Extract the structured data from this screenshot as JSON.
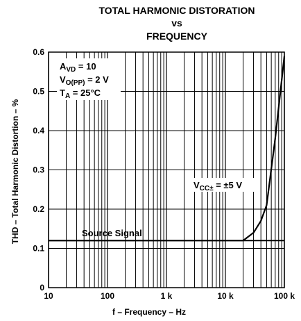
{
  "chart_data": {
    "type": "line",
    "title": [
      "TOTAL HARMONIC DISTORATION",
      "vs",
      "FREQUENCY"
    ],
    "xlabel": "f – Frequency – Hz",
    "ylabel": "THD – Total Harmonic Distortion – %",
    "xscale": "log",
    "xlim": [
      10,
      100000
    ],
    "ylim": [
      0,
      0.6
    ],
    "grid": true,
    "x_ticks": [
      {
        "value": 10,
        "label": "10"
      },
      {
        "value": 100,
        "label": "100"
      },
      {
        "value": 1000,
        "label": "1 k"
      },
      {
        "value": 10000,
        "label": "10 k"
      },
      {
        "value": 100000,
        "label": "100 k"
      }
    ],
    "y_ticks": [
      {
        "value": 0,
        "label": "0"
      },
      {
        "value": 0.1,
        "label": "0.1"
      },
      {
        "value": 0.2,
        "label": "0.2"
      },
      {
        "value": 0.3,
        "label": "0.3"
      },
      {
        "value": 0.4,
        "label": "0.4"
      },
      {
        "value": 0.5,
        "label": "0.5"
      },
      {
        "value": 0.6,
        "label": "0.6"
      }
    ],
    "conditions": [
      {
        "main": "A",
        "sub": "VD",
        "rest": " = 10"
      },
      {
        "main": "V",
        "sub": "O(PP)",
        "rest": " = 2 V"
      },
      {
        "main": "T",
        "sub": "A",
        "rest": " = 25°C"
      }
    ],
    "series": [
      {
        "label_main": "V",
        "label_sub": "CC±",
        "label_rest": " = ±5 V",
        "x": [
          10,
          100,
          1000,
          10000,
          20000,
          30000,
          40000,
          50000,
          70000,
          100000
        ],
        "y": [
          0.12,
          0.12,
          0.12,
          0.12,
          0.12,
          0.14,
          0.17,
          0.21,
          0.38,
          0.59
        ]
      }
    ],
    "reference_line": {
      "label": "Source Signal",
      "y": 0.12
    }
  }
}
